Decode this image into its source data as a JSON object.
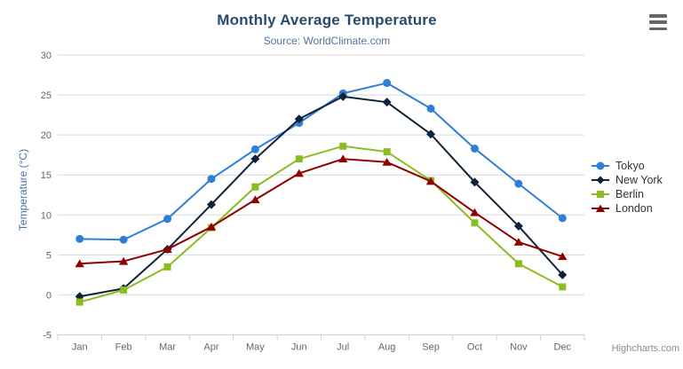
{
  "chart": {
    "title": "Monthly Average Temperature",
    "subtitle": "Source: WorldClimate.com",
    "credits": "Highcharts.com",
    "context_menu_icon": "hamburger-menu-icon"
  },
  "palette": {
    "title_color": "#274b6d",
    "subtitle_color": "#4d759e",
    "axis_label_color": "#666666",
    "yaxis_title_color": "#4572a7",
    "gridline_color": "#d8d8d8",
    "xaxis_line_color": "#c0d0e0",
    "legend_text_color": "#333333",
    "credits_color": "#8c8c8c",
    "menu_icon_color": "#666666"
  },
  "chart_data": {
    "type": "line",
    "title": "Monthly Average Temperature",
    "subtitle": "Source: WorldClimate.com",
    "categories": [
      "Jan",
      "Feb",
      "Mar",
      "Apr",
      "May",
      "Jun",
      "Jul",
      "Aug",
      "Sep",
      "Oct",
      "Nov",
      "Dec"
    ],
    "series": [
      {
        "name": "Tokyo",
        "color": "#2f7ed8",
        "marker": "circle",
        "values": [
          7.0,
          6.9,
          9.5,
          14.5,
          18.2,
          21.5,
          25.2,
          26.5,
          23.3,
          18.3,
          13.9,
          9.6
        ]
      },
      {
        "name": "New York",
        "color": "#0d233a",
        "marker": "diamond",
        "values": [
          -0.2,
          0.8,
          5.7,
          11.3,
          17.0,
          22.0,
          24.8,
          24.1,
          20.1,
          14.1,
          8.6,
          2.5
        ]
      },
      {
        "name": "Berlin",
        "color": "#8bbc21",
        "marker": "square",
        "values": [
          -0.9,
          0.6,
          3.5,
          8.4,
          13.5,
          17.0,
          18.6,
          17.9,
          14.3,
          9.0,
          3.9,
          1.0
        ]
      },
      {
        "name": "London",
        "color": "#910000",
        "marker": "triangle",
        "values": [
          3.9,
          4.2,
          5.7,
          8.5,
          11.9,
          15.2,
          17.0,
          16.6,
          14.2,
          10.3,
          6.6,
          4.8
        ]
      }
    ],
    "xlabel": "",
    "ylabel": "Temperature (°C)",
    "yAxis": {
      "min": -5,
      "max": 30,
      "tickInterval": 5
    },
    "grid": true,
    "legend_position": "right"
  }
}
